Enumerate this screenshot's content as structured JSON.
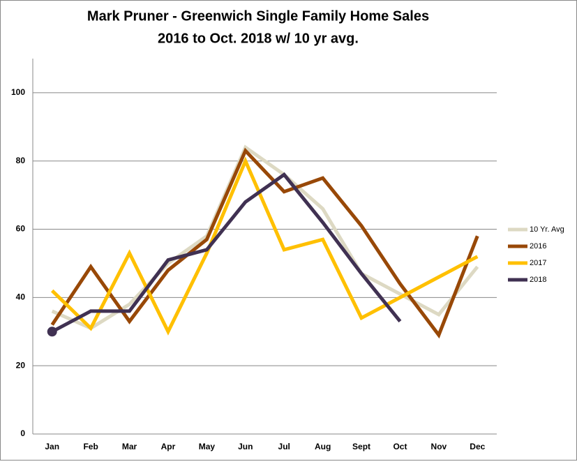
{
  "chart_data": {
    "type": "line",
    "title": "Mark Pruner - Greenwich Single Family Home Sales",
    "subtitle": "2016 to Oct. 2018 w/ 10 yr avg.",
    "categories": [
      "Jan",
      "Feb",
      "Mar",
      "Apr",
      "May",
      "Jun",
      "Jul",
      "Aug",
      "Sept",
      "Oct",
      "Nov",
      "Dec"
    ],
    "series": [
      {
        "name": "10 Yr. Avg",
        "color": "#ddd9c3",
        "values": [
          36,
          31,
          38,
          50,
          58,
          84,
          76,
          66,
          47,
          41,
          35,
          49
        ]
      },
      {
        "name": "2016",
        "color": "#984807",
        "values": [
          32,
          49,
          33,
          48,
          57,
          83,
          71,
          75,
          61,
          44,
          29,
          58
        ]
      },
      {
        "name": "2017",
        "color": "#ffc000",
        "values": [
          42,
          31,
          53,
          30,
          53,
          80,
          54,
          57,
          34,
          40,
          46,
          52
        ]
      },
      {
        "name": "2018",
        "color": "#403152",
        "values": [
          30,
          36,
          36,
          51,
          54,
          68,
          76,
          62,
          47,
          33,
          null,
          null
        ]
      }
    ],
    "ylim": [
      0,
      110
    ],
    "yticks": [
      0,
      20,
      40,
      60,
      80,
      100
    ],
    "grid": true,
    "legend": "right"
  }
}
